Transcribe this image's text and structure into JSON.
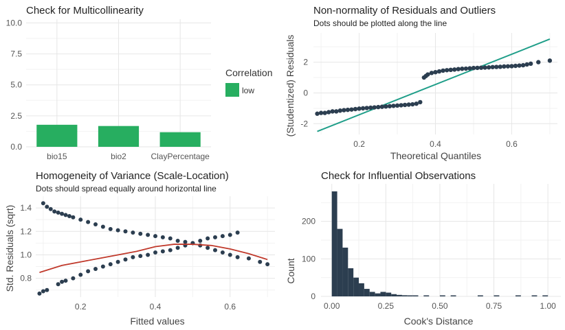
{
  "colors": {
    "bar_green": "#27ae60",
    "navy": "#2c3e50",
    "teal": "#1f9e89",
    "red": "#c0392b",
    "grid": "#e6e6e6",
    "text": "#222222",
    "tick": "#555555"
  },
  "chart_data": [
    {
      "id": "collinearity",
      "type": "bar",
      "title": "Check for Multicollinearity",
      "subtitle": "",
      "xlabel": "",
      "ylabel": "",
      "categories": [
        "bio15",
        "bio2",
        "ClayPercentage"
      ],
      "values": [
        1.78,
        1.68,
        1.18
      ],
      "ylim": [
        0,
        10.3
      ],
      "yticks": [
        0.0,
        2.5,
        5.0,
        7.5,
        10.0
      ],
      "ytick_labels": [
        "0.0",
        "2.5",
        "5.0",
        "7.5",
        "10.0"
      ],
      "legend": {
        "title": "Correlation",
        "items": [
          {
            "label": "low",
            "color": "#27ae60"
          }
        ],
        "position": "right"
      },
      "grid": true
    },
    {
      "id": "qq",
      "type": "scatter",
      "title": "Non-normality of Residuals and Outliers",
      "subtitle": "Dots should be plotted along the line",
      "xlabel": "Theoretical Quantiles",
      "ylabel": "(Studentized) Residuals",
      "xlim": [
        0.08,
        0.72
      ],
      "ylim": [
        -2.7,
        3.9
      ],
      "xticks": [
        0.2,
        0.4,
        0.6
      ],
      "xtick_labels": [
        "0.2",
        "0.4",
        "0.6"
      ],
      "yticks": [
        -2,
        0,
        2
      ],
      "ytick_labels": [
        "-2",
        "0",
        "2"
      ],
      "reference_line": {
        "x": [
          0.09,
          0.7
        ],
        "y": [
          -2.5,
          3.5
        ]
      },
      "points": {
        "x": [
          0.09,
          0.1,
          0.11,
          0.12,
          0.13,
          0.14,
          0.15,
          0.16,
          0.17,
          0.18,
          0.19,
          0.2,
          0.21,
          0.22,
          0.23,
          0.24,
          0.25,
          0.26,
          0.27,
          0.28,
          0.29,
          0.3,
          0.31,
          0.32,
          0.33,
          0.34,
          0.35,
          0.36,
          0.37,
          0.375,
          0.38,
          0.39,
          0.4,
          0.41,
          0.42,
          0.43,
          0.44,
          0.45,
          0.46,
          0.47,
          0.48,
          0.49,
          0.5,
          0.51,
          0.52,
          0.53,
          0.54,
          0.55,
          0.56,
          0.57,
          0.58,
          0.59,
          0.6,
          0.61,
          0.62,
          0.63,
          0.64,
          0.65,
          0.67,
          0.7
        ],
        "y": [
          -1.35,
          -1.3,
          -1.3,
          -1.25,
          -1.2,
          -1.2,
          -1.15,
          -1.12,
          -1.1,
          -1.08,
          -1.05,
          -1.02,
          -1.0,
          -0.98,
          -0.96,
          -0.94,
          -0.92,
          -0.9,
          -0.88,
          -0.86,
          -0.84,
          -0.82,
          -0.8,
          -0.78,
          -0.76,
          -0.74,
          -0.7,
          -0.6,
          1.0,
          1.1,
          1.2,
          1.3,
          1.35,
          1.4,
          1.45,
          1.48,
          1.5,
          1.52,
          1.55,
          1.57,
          1.58,
          1.6,
          1.62,
          1.63,
          1.64,
          1.65,
          1.66,
          1.68,
          1.69,
          1.7,
          1.72,
          1.73,
          1.74,
          1.76,
          1.78,
          1.8,
          1.85,
          1.9,
          2.0,
          2.1
        ]
      },
      "grid": true
    },
    {
      "id": "scale_location",
      "type": "scatter",
      "title": "Homogeneity of Variance (Scale-Location)",
      "subtitle": "Dots should spread equally around horizontal line",
      "xlabel": "Fitted values",
      "ylabel": "Std. Residuals (sqrt)",
      "xlim": [
        0.08,
        0.72
      ],
      "ylim": [
        0.64,
        1.5
      ],
      "xticks": [
        0.2,
        0.4,
        0.6
      ],
      "xtick_labels": [
        "0.2",
        "0.4",
        "0.6"
      ],
      "yticks": [
        0.8,
        1.0,
        1.2,
        1.4
      ],
      "ytick_labels": [
        "0.8",
        "1.0",
        "1.2",
        "1.4"
      ],
      "series": [
        {
          "x": [
            0.1,
            0.11,
            0.12,
            0.13,
            0.14,
            0.15,
            0.16,
            0.17,
            0.18,
            0.2,
            0.22,
            0.24,
            0.26,
            0.28,
            0.3,
            0.32,
            0.34,
            0.36,
            0.38,
            0.4,
            0.42,
            0.44,
            0.46,
            0.48,
            0.5,
            0.52,
            0.54,
            0.56,
            0.58,
            0.6,
            0.62,
            0.65,
            0.68,
            0.7
          ],
          "y": [
            1.44,
            1.41,
            1.39,
            1.37,
            1.36,
            1.35,
            1.34,
            1.33,
            1.32,
            1.3,
            1.28,
            1.26,
            1.24,
            1.22,
            1.21,
            1.2,
            1.19,
            1.18,
            1.17,
            1.16,
            1.15,
            1.14,
            1.12,
            1.11,
            1.1,
            1.08,
            1.06,
            1.04,
            1.02,
            1.0,
            0.98,
            0.97,
            0.94,
            0.92
          ]
        },
        {
          "x": [
            0.09,
            0.1,
            0.11,
            0.14,
            0.15,
            0.16,
            0.18,
            0.2,
            0.22,
            0.24,
            0.26,
            0.28,
            0.3,
            0.32,
            0.34,
            0.36,
            0.38,
            0.4,
            0.42,
            0.44,
            0.46,
            0.48,
            0.5,
            0.52,
            0.54,
            0.56,
            0.58,
            0.6,
            0.62
          ],
          "y": [
            0.67,
            0.69,
            0.7,
            0.75,
            0.77,
            0.78,
            0.8,
            0.83,
            0.86,
            0.88,
            0.9,
            0.92,
            0.94,
            0.96,
            0.98,
            0.99,
            1.0,
            1.02,
            1.03,
            1.04,
            1.06,
            1.08,
            1.1,
            1.12,
            1.14,
            1.15,
            1.16,
            1.17,
            1.19
          ]
        }
      ],
      "smooth_line": {
        "x": [
          0.09,
          0.15,
          0.2,
          0.25,
          0.3,
          0.35,
          0.4,
          0.45,
          0.5,
          0.55,
          0.6,
          0.65,
          0.7
        ],
        "y": [
          0.85,
          0.91,
          0.94,
          0.97,
          1.0,
          1.03,
          1.07,
          1.09,
          1.09,
          1.08,
          1.05,
          1.01,
          0.96
        ]
      },
      "grid": true
    },
    {
      "id": "cooks",
      "type": "bar",
      "title": "Check for Influential Observations",
      "subtitle": "",
      "xlabel": "Cook's Distance",
      "ylabel": "Count",
      "bin_width": 0.025,
      "xlim": [
        -0.05,
        1.06
      ],
      "ylim": [
        0,
        300
      ],
      "xticks": [
        0.0,
        0.25,
        0.5,
        0.75,
        1.0
      ],
      "xtick_labels": [
        "0.00",
        "0.25",
        "0.50",
        "0.75",
        "1.00"
      ],
      "yticks": [
        0,
        100,
        200
      ],
      "ytick_labels": [
        "0",
        "100",
        "200"
      ],
      "bins_start": [
        0.0,
        0.025,
        0.05,
        0.075,
        0.1,
        0.125,
        0.15,
        0.175,
        0.2,
        0.225,
        0.25,
        0.275,
        0.3,
        0.325,
        0.35,
        0.375,
        0.425,
        0.5,
        0.55,
        0.675,
        0.75,
        0.85,
        0.925,
        0.975
      ],
      "counts": [
        280,
        180,
        130,
        75,
        50,
        35,
        20,
        12,
        8,
        12,
        10,
        6,
        4,
        3,
        2,
        2,
        1,
        1,
        1,
        1,
        1,
        1,
        1,
        1
      ],
      "grid": true
    }
  ]
}
